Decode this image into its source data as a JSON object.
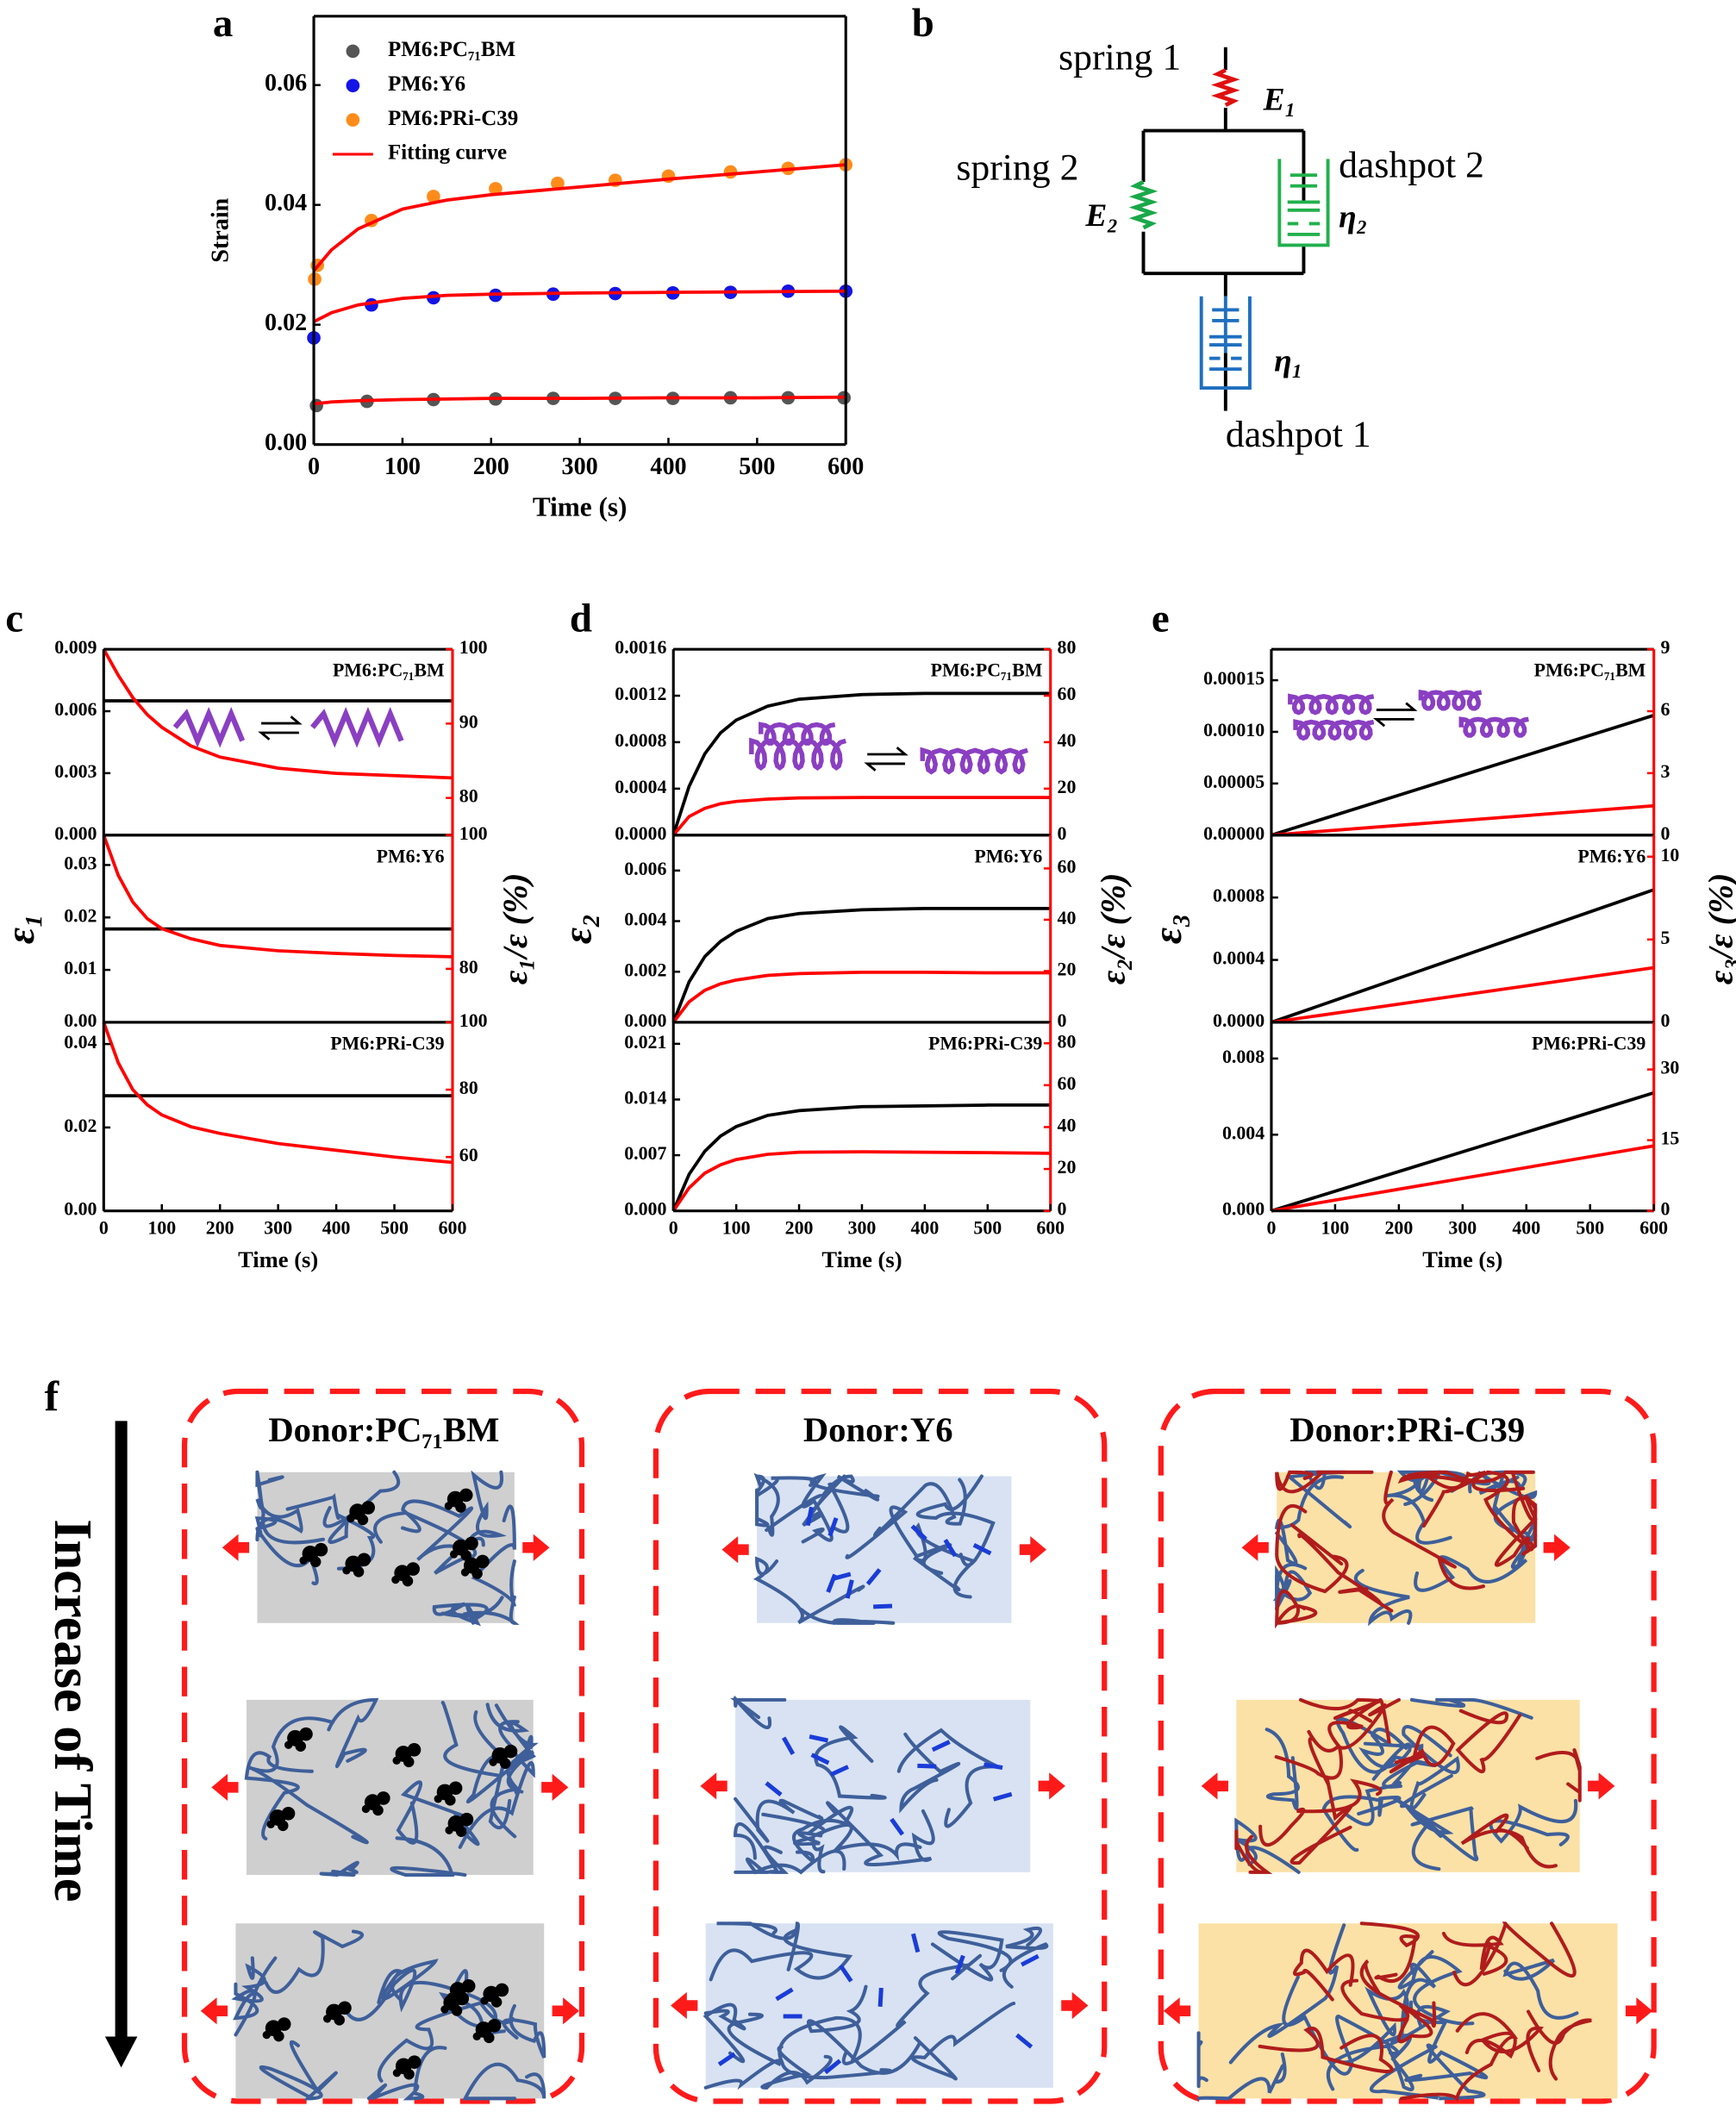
{
  "chart_data": [
    {
      "type": "scatter",
      "panel": "a",
      "xlabel": "Time (s)",
      "ylabel": "Strain",
      "xlim": [
        0,
        600
      ],
      "xticks": [
        0,
        100,
        200,
        300,
        400,
        500,
        600
      ],
      "ylim": [
        0,
        0.0715
      ],
      "yticks": [
        {
          "value": 0,
          "label": "0.00"
        },
        0.02,
        0.04,
        0.06
      ],
      "legend": "upper left",
      "series": [
        {
          "name": "PM6:PC₇₁BM",
          "color": "#555555",
          "mode": "markers",
          "x": [
            3,
            60,
            135,
            205,
            270,
            340,
            405,
            470,
            535,
            598
          ],
          "values": [
            0.0065,
            0.0072,
            0.0075,
            0.0076,
            0.0077,
            0.0077,
            0.0077,
            0.0078,
            0.0078,
            0.0078
          ]
        },
        {
          "name": "PM6:Y6",
          "color": "#1414e6",
          "mode": "markers",
          "x": [
            0,
            65,
            135,
            205,
            270,
            340,
            405,
            470,
            535,
            600
          ],
          "values": [
            0.0178,
            0.0233,
            0.0245,
            0.0249,
            0.0251,
            0.0252,
            0.0253,
            0.0254,
            0.0256,
            0.0256
          ]
        },
        {
          "name": "PM6:PRi-C39",
          "color": "#ff8c1a",
          "mode": "markers",
          "x": [
            1,
            4,
            65,
            135,
            205,
            275,
            340,
            400,
            470,
            535,
            600
          ],
          "values": [
            0.0276,
            0.0299,
            0.0374,
            0.0414,
            0.0427,
            0.0436,
            0.0441,
            0.0448,
            0.0455,
            0.0461,
            0.0467
          ]
        },
        {
          "name": "Fitting curve",
          "color": "#ff0000",
          "mode": "lines",
          "x": [
            0,
            20,
            50,
            100,
            150,
            200,
            300,
            400,
            500,
            600
          ],
          "values": [
            0.029,
            0.0325,
            0.036,
            0.0393,
            0.0408,
            0.0417,
            0.043,
            0.0443,
            0.0455,
            0.0467
          ]
        },
        {
          "color": "#ff0000",
          "mode": "lines",
          "x": [
            0,
            20,
            50,
            100,
            150,
            200,
            300,
            400,
            500,
            600
          ],
          "values": [
            0.0205,
            0.022,
            0.0233,
            0.0244,
            0.0249,
            0.0251,
            0.0253,
            0.0254,
            0.0255,
            0.0256
          ]
        },
        {
          "color": "#ff0000",
          "mode": "lines",
          "x": [
            0,
            20,
            50,
            100,
            150,
            200,
            300,
            400,
            500,
            600
          ],
          "values": [
            0.0068,
            0.0071,
            0.0073,
            0.0075,
            0.0076,
            0.0077,
            0.0077,
            0.0078,
            0.0078,
            0.0079
          ]
        }
      ]
    },
    {
      "type": "line",
      "panel": "c",
      "annotation": "PM6:PC₇₁BM",
      "xlim": [
        0,
        600
      ],
      "ylim": [
        0,
        0.009
      ],
      "yticks": [
        {
          "value": 0,
          "label": "0.000"
        },
        0.003,
        0.006,
        0.009
      ],
      "y2lim": [
        75,
        100
      ],
      "y2ticks": [
        80,
        90,
        100
      ],
      "x": [
        0,
        25,
        50,
        75,
        100,
        150,
        200,
        300,
        400,
        500,
        600
      ],
      "series": [
        {
          "color": "#000000",
          "values": [
            0.0065,
            0.0065,
            0.0065,
            0.0065,
            0.0065,
            0.0065,
            0.0065,
            0.0065,
            0.0065,
            0.0065,
            0.0065
          ]
        },
        {
          "color": "#ff0000",
          "axis": "y2",
          "values": [
            100,
            96.5,
            93.5,
            91.2,
            89.5,
            87,
            85.5,
            84,
            83.3,
            83,
            82.7
          ]
        }
      ]
    },
    {
      "type": "line",
      "ylabel": "ε₁",
      "y2label": "ε₁/ε (%)",
      "annotation": "PM6:Y6",
      "xlim": [
        0,
        600
      ],
      "ylim": [
        0,
        0.0357
      ],
      "yticks": [
        {
          "value": 0,
          "label": "0.00"
        },
        0.01,
        0.02,
        0.03
      ],
      "y2lim": [
        72,
        100
      ],
      "y2ticks": [
        80,
        100
      ],
      "x": [
        0,
        25,
        50,
        75,
        100,
        150,
        200,
        300,
        400,
        500,
        600
      ],
      "series": [
        {
          "color": "#000000",
          "values": [
            0.0178,
            0.0178,
            0.0178,
            0.0178,
            0.0178,
            0.0178,
            0.0178,
            0.0178,
            0.0178,
            0.0178,
            0.0178
          ]
        },
        {
          "color": "#ff0000",
          "axis": "y2",
          "values": [
            100,
            94,
            90,
            87.5,
            86,
            84.5,
            83.5,
            82.7,
            82.3,
            82,
            81.8
          ]
        }
      ]
    },
    {
      "type": "line",
      "xlabel": "Time (s)",
      "annotation": "PM6:PRi-C39",
      "xlim": [
        0,
        600
      ],
      "xticks": [
        0,
        100,
        200,
        300,
        400,
        500,
        600
      ],
      "ylim": [
        0,
        0.0452
      ],
      "yticks": [
        {
          "value": 0,
          "label": "0.00"
        },
        0.02,
        0.04
      ],
      "y2lim": [
        44,
        100
      ],
      "y2ticks": [
        60,
        80,
        100
      ],
      "x": [
        0,
        25,
        50,
        75,
        100,
        150,
        200,
        300,
        400,
        500,
        600
      ],
      "series": [
        {
          "color": "#000000",
          "values": [
            0.0276,
            0.0276,
            0.0276,
            0.0276,
            0.0276,
            0.0276,
            0.0276,
            0.0276,
            0.0276,
            0.0276,
            0.0276
          ]
        },
        {
          "color": "#ff0000",
          "axis": "y2",
          "values": [
            100,
            88,
            80,
            75.5,
            72.5,
            69,
            67,
            64,
            62,
            60,
            58.4
          ]
        }
      ]
    },
    {
      "type": "line",
      "panel": "d",
      "annotation": "PM6:PC₇₁BM",
      "xlim": [
        0,
        600
      ],
      "ylim": [
        0,
        0.0016
      ],
      "yticks": [
        {
          "value": 0,
          "label": "0.0000"
        },
        0.0004,
        0.0008,
        0.0012,
        0.0016
      ],
      "y2lim": [
        0,
        80
      ],
      "y2ticks": [
        0,
        20,
        40,
        60,
        80
      ],
      "x": [
        0,
        25,
        50,
        75,
        100,
        150,
        200,
        300,
        400,
        500,
        600
      ],
      "series": [
        {
          "color": "#000000",
          "values": [
            0,
            0.00042,
            0.0007,
            0.00088,
            0.00099,
            0.00111,
            0.00117,
            0.00121,
            0.00122,
            0.00122,
            0.00122
          ]
        },
        {
          "color": "#ff0000",
          "axis": "y2",
          "values": [
            0,
            8,
            11.5,
            13.5,
            14.5,
            15.5,
            16,
            16.2,
            16.2,
            16.2,
            16.2
          ]
        }
      ]
    },
    {
      "type": "line",
      "ylabel": "ε₂",
      "y2label": "ε₂/ε (%)",
      "annotation": "PM6:Y6",
      "xlim": [
        0,
        600
      ],
      "ylim": [
        0,
        0.0074
      ],
      "yticks": [
        {
          "value": 0,
          "label": "0.000"
        },
        0.002,
        0.004,
        0.006
      ],
      "y2lim": [
        0,
        73
      ],
      "y2ticks": [
        0,
        20,
        40,
        60
      ],
      "x": [
        0,
        25,
        50,
        75,
        100,
        150,
        200,
        300,
        400,
        500,
        600
      ],
      "series": [
        {
          "color": "#000000",
          "values": [
            0,
            0.0016,
            0.0026,
            0.0032,
            0.0036,
            0.0041,
            0.0043,
            0.00445,
            0.0045,
            0.0045,
            0.0045
          ]
        },
        {
          "color": "#ff0000",
          "axis": "y2",
          "values": [
            0,
            8,
            12.5,
            15,
            16.5,
            18.3,
            19,
            19.5,
            19.5,
            19.3,
            19.3
          ]
        }
      ]
    },
    {
      "type": "line",
      "xlabel": "Time (s)",
      "annotation": "PM6:PRi-C39",
      "xlim": [
        0,
        600
      ],
      "xticks": [
        0,
        100,
        200,
        300,
        400,
        500,
        600
      ],
      "ylim": [
        0,
        0.0237
      ],
      "yticks": [
        {
          "value": 0,
          "label": "0.000"
        },
        0.007,
        0.014,
        0.021
      ],
      "y2lim": [
        0,
        90
      ],
      "y2ticks": [
        0,
        20,
        40,
        60,
        80
      ],
      "x": [
        0,
        25,
        50,
        75,
        100,
        150,
        200,
        300,
        400,
        500,
        600
      ],
      "series": [
        {
          "color": "#000000",
          "values": [
            0,
            0.0046,
            0.0075,
            0.0094,
            0.0106,
            0.012,
            0.0126,
            0.0131,
            0.0132,
            0.0133,
            0.0133
          ]
        },
        {
          "color": "#ff0000",
          "axis": "y2",
          "values": [
            0,
            11,
            18,
            22,
            24.5,
            27,
            28,
            28.2,
            28,
            27.8,
            27.5
          ]
        }
      ]
    },
    {
      "type": "line",
      "panel": "e",
      "annotation": "PM6:PC₇₁BM",
      "xlim": [
        0,
        600
      ],
      "ylim": [
        0,
        0.00018
      ],
      "yticks": [
        {
          "value": 0,
          "label": "0.00000"
        },
        5e-05,
        {
          "value": 0.0001,
          "label": "0.00010"
        },
        0.00015
      ],
      "y2lim": [
        0,
        9
      ],
      "y2ticks": [
        0,
        3,
        6,
        9
      ],
      "x": [
        0,
        600
      ],
      "series": [
        {
          "color": "#000000",
          "values": [
            0,
            0.000116
          ]
        },
        {
          "color": "#ff0000",
          "axis": "y2",
          "values": [
            0,
            1.42
          ]
        }
      ]
    },
    {
      "type": "line",
      "ylabel": "ε₃",
      "y2label": "ε₃/ε (%)",
      "annotation": "PM6:Y6",
      "xlim": [
        0,
        600
      ],
      "ylim": [
        0,
        0.0012
      ],
      "yticks": [
        {
          "value": 0,
          "label": "0.0000"
        },
        0.0004,
        0.0008
      ],
      "y2lim": [
        0,
        11.3
      ],
      "y2ticks": [
        0,
        5,
        10
      ],
      "x": [
        0,
        600
      ],
      "series": [
        {
          "color": "#000000",
          "values": [
            0,
            0.00085
          ]
        },
        {
          "color": "#ff0000",
          "axis": "y2",
          "values": [
            0,
            3.3
          ]
        }
      ]
    },
    {
      "type": "line",
      "xlabel": "Time (s)",
      "annotation": "PM6:PRi-C39",
      "xlim": [
        0,
        600
      ],
      "xticks": [
        0,
        100,
        200,
        300,
        400,
        500,
        600
      ],
      "ylim": [
        0,
        0.0099
      ],
      "yticks": [
        {
          "value": 0,
          "label": "0.000"
        },
        0.004,
        0.008
      ],
      "y2lim": [
        0,
        40
      ],
      "y2ticks": [
        0,
        15,
        30
      ],
      "x": [
        0,
        600
      ],
      "series": [
        {
          "color": "#000000",
          "values": [
            0,
            0.0062
          ]
        },
        {
          "color": "#ff0000",
          "axis": "y2",
          "values": [
            0,
            13.8
          ]
        }
      ]
    }
  ],
  "diagram": {
    "panel": "b",
    "spring_1": "spring 1",
    "E1": "E₁",
    "spring_2": "spring 2",
    "E2": "E₂",
    "dashpot_2": "dashpot 2",
    "eta2": "η₂",
    "eta1": "η₁",
    "dashpot_1": "dashpot 1"
  },
  "illustration": {
    "panel": "f",
    "time_label": "Increase of Time",
    "columns": [
      "Donor:PC₇₁BM",
      "Donor:Y6",
      "Donor:PRi-C39"
    ]
  }
}
